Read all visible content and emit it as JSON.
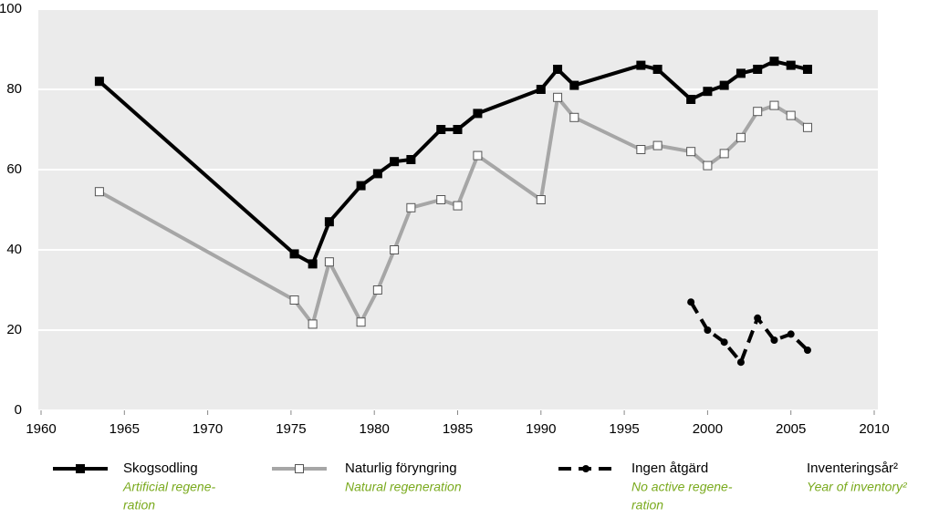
{
  "chart_data": {
    "type": "line",
    "xlim": [
      1960,
      2010
    ],
    "xticks": [
      1960,
      1965,
      1970,
      1975,
      1980,
      1985,
      1990,
      1995,
      2000,
      2005,
      2010
    ],
    "ylim": [
      0,
      100
    ],
    "yticks": [
      0,
      20,
      40,
      60,
      80,
      100
    ],
    "grid": true,
    "series": [
      {
        "name": "Skogsodling",
        "translation": [
          "Artificial regene-",
          "ration"
        ],
        "color": "#000000",
        "marker": "filled-square",
        "x": [
          1963.5,
          1975.2,
          1976.3,
          1977.3,
          1979.2,
          1980.2,
          1981.2,
          1982.2,
          1984,
          1985,
          1986.2,
          1990,
          1991,
          1992,
          1996,
          1997,
          1999,
          2000,
          2001,
          2002,
          2003,
          2004,
          2005,
          2006
        ],
        "values": [
          82,
          39,
          36.5,
          47,
          56,
          59,
          62,
          62.5,
          70,
          70,
          74,
          80,
          85,
          81,
          86,
          85,
          77.5,
          79.5,
          81,
          84,
          85,
          87,
          86,
          85
        ]
      },
      {
        "name": "Naturlig föryngring",
        "translation": [
          "Natural  regeneration"
        ],
        "color": "#a6a6a6",
        "marker": "open-square",
        "x": [
          1963.5,
          1975.2,
          1976.3,
          1977.3,
          1979.2,
          1980.2,
          1981.2,
          1982.2,
          1984,
          1985,
          1986.2,
          1990,
          1991,
          1992,
          1996,
          1997,
          1999,
          2000,
          2001,
          2002,
          2003,
          2004,
          2005,
          2006
        ],
        "values": [
          54.5,
          27.5,
          21.5,
          37,
          22,
          30,
          40,
          50.5,
          52.5,
          51,
          63.5,
          52.5,
          78,
          73,
          65,
          66,
          64.5,
          61,
          64,
          68,
          74.5,
          76,
          73.5,
          70.5
        ]
      },
      {
        "name": "Ingen åtgärd",
        "translation": [
          "No active regene-",
          "ration"
        ],
        "color": "#000000",
        "marker": "dot",
        "dashed": true,
        "x": [
          1999,
          2000,
          2001,
          2002,
          2003,
          2004,
          2005,
          2006
        ],
        "values": [
          27,
          20,
          17,
          12,
          23,
          17.5,
          19,
          15
        ]
      }
    ],
    "legend_note": {
      "label": "Inventeringsår²",
      "translation": "Year of inventory²"
    }
  }
}
